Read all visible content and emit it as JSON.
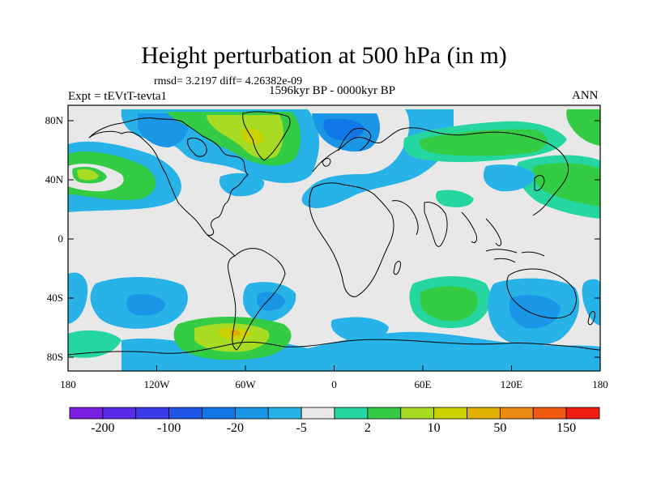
{
  "title": "Height perturbation at 500 hPa (in m)",
  "stats": "rmsd= 3.2197 diff= 4.26382e-09",
  "period": "1596kyr BP - 0000kyr BP",
  "experiment": "Expt = tEVtT-tevta1",
  "season": "ANN",
  "lat_ticks": [
    "80N",
    "40N",
    "0",
    "40S",
    "80S"
  ],
  "lon_ticks": [
    "180",
    "120W",
    "60W",
    "0",
    "60E",
    "120E",
    "180"
  ],
  "colorbar": {
    "colors": [
      "#7a1fe0",
      "#5a2be6",
      "#3d3ae8",
      "#1f55e6",
      "#1277e6",
      "#1a96e6",
      "#28b3e8",
      "#e8e8e8",
      "#26d6a0",
      "#33cc44",
      "#a8dc22",
      "#ccd100",
      "#e0b000",
      "#ea8a10",
      "#f05a10",
      "#ee1e12"
    ],
    "labels": [
      "-200",
      "-100",
      "-20",
      "-5",
      "2",
      "10",
      "50",
      "150"
    ],
    "missing_color": "#e8e8e8"
  }
}
